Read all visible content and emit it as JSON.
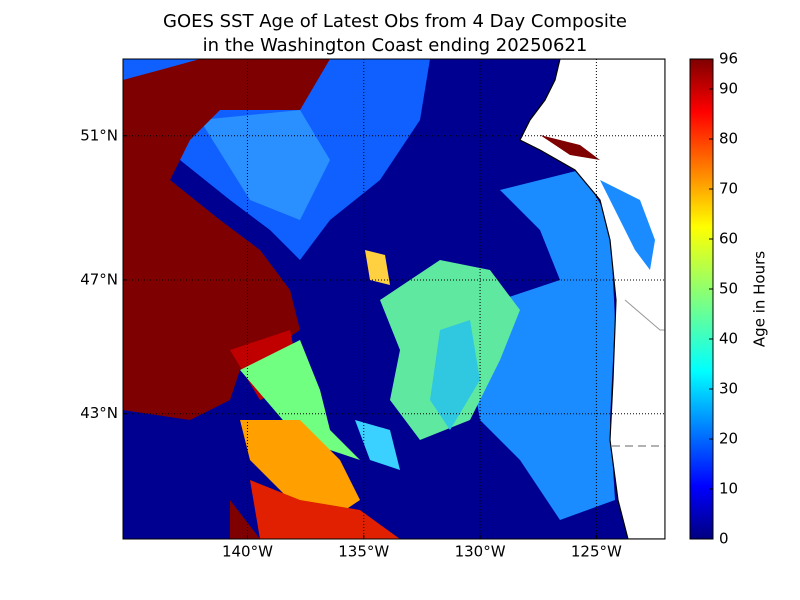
{
  "title": [
    "GOES SST Age of Latest Obs from 4 Day Composite",
    "in the Washington Coast ending 20250621"
  ],
  "map": {
    "lonlim": [
      -145.35,
      -122.05
    ],
    "latlim": [
      39,
      53
    ],
    "lon_ticks": [
      {
        "value": -140,
        "label": "140°W"
      },
      {
        "value": -135,
        "label": "135°W"
      },
      {
        "value": -130,
        "label": "130°W"
      },
      {
        "value": -125,
        "label": "125°W"
      }
    ],
    "lat_ticks": [
      {
        "value": 51,
        "label": "51°N"
      },
      {
        "value": 47,
        "label": "47°N"
      },
      {
        "value": 43,
        "label": "43°N"
      }
    ]
  },
  "colorbar": {
    "label": "Age in Hours",
    "range": [
      0,
      96
    ],
    "ticks": [
      0,
      10,
      20,
      30,
      40,
      50,
      60,
      70,
      80,
      90,
      96
    ]
  }
}
